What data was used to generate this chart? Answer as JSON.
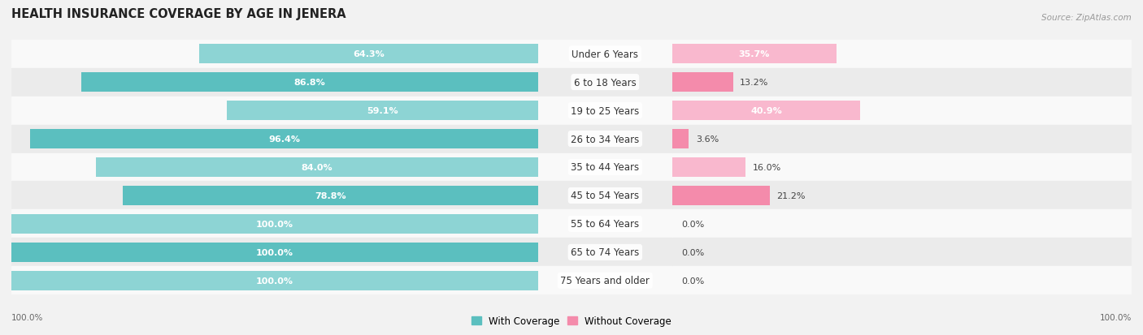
{
  "title": "HEALTH INSURANCE COVERAGE BY AGE IN JENERA",
  "source": "Source: ZipAtlas.com",
  "categories": [
    "Under 6 Years",
    "6 to 18 Years",
    "19 to 25 Years",
    "26 to 34 Years",
    "35 to 44 Years",
    "45 to 54 Years",
    "55 to 64 Years",
    "65 to 74 Years",
    "75 Years and older"
  ],
  "with_coverage": [
    64.3,
    86.8,
    59.1,
    96.4,
    84.0,
    78.8,
    100.0,
    100.0,
    100.0
  ],
  "without_coverage": [
    35.7,
    13.2,
    40.9,
    3.6,
    16.0,
    21.2,
    0.0,
    0.0,
    0.0
  ],
  "color_with": "#5BBFBF",
  "color_without": "#F48BAB",
  "color_with_light": "#8DD4D4",
  "color_without_light": "#F9B8CE",
  "bg_color": "#f2f2f2",
  "row_bg_light": "#f9f9f9",
  "row_bg_dark": "#ebebeb",
  "title_fontsize": 10.5,
  "bar_label_fontsize": 8,
  "cat_label_fontsize": 8.5,
  "legend_fontsize": 8.5,
  "axis_label_fontsize": 7.5
}
